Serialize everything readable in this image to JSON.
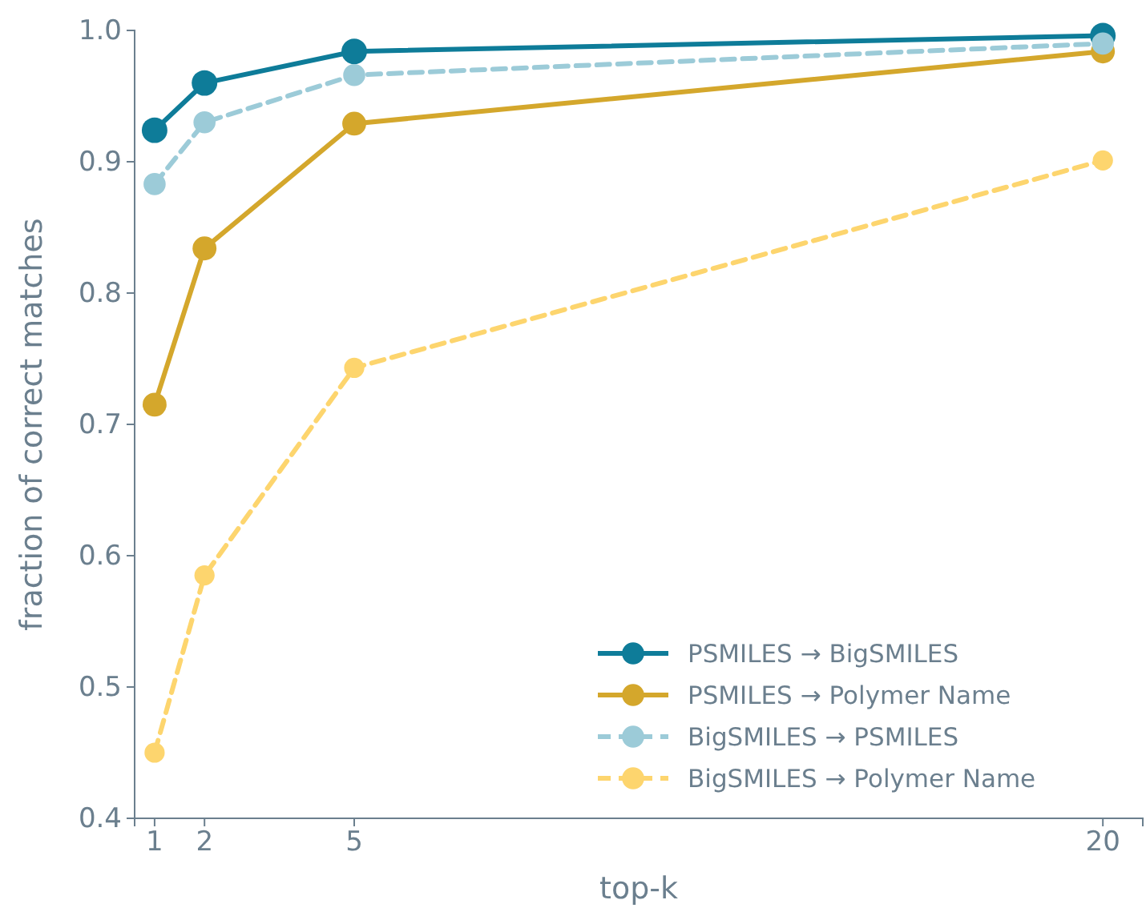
{
  "chart_data": {
    "type": "line",
    "xlabel": "top-k",
    "ylabel": "fraction of correct matches",
    "x": [
      1,
      2,
      5,
      20
    ],
    "xlim": [
      0.6,
      20.8
    ],
    "xticks": [
      1,
      2,
      5,
      20
    ],
    "ylim": [
      0.4,
      1.0
    ],
    "yticks": [
      {
        "value": 0.4,
        "label": "0.4"
      },
      {
        "value": 0.5,
        "label": "0.5"
      },
      {
        "value": 0.6,
        "label": "0.6"
      },
      {
        "value": 0.7,
        "label": "0.7"
      },
      {
        "value": 0.8,
        "label": "0.8"
      },
      {
        "value": 0.9,
        "label": "0.9"
      },
      {
        "value": 1.0,
        "label": "1.0"
      }
    ],
    "grid": false,
    "legend": "bottom right",
    "marker": "circle",
    "series": [
      {
        "name": "PSMILES → BigSMILES",
        "color": "#0e7c99",
        "line_style": "solid",
        "values": [
          0.924,
          0.96,
          0.984,
          0.996
        ]
      },
      {
        "name": "PSMILES → Polymer Name",
        "color": "#d4a72c",
        "line_style": "solid",
        "values": [
          0.715,
          0.834,
          0.929,
          0.984
        ]
      },
      {
        "name": "BigSMILES → PSMILES",
        "color": "#9ccbd8",
        "line_style": "dashed",
        "values": [
          0.883,
          0.93,
          0.966,
          0.99
        ]
      },
      {
        "name": "BigSMILES → Polymer Name",
        "color": "#fdd56e",
        "line_style": "dashed",
        "values": [
          0.45,
          0.585,
          0.743,
          0.901
        ]
      }
    ]
  }
}
